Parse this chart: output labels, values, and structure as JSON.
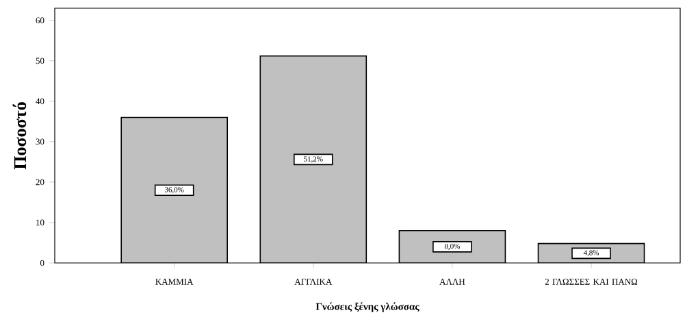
{
  "chart_data": {
    "type": "bar",
    "xlabel": "Γνώσεις ξένης γλώσσας",
    "ylabel": "Ποσοστό",
    "categories": [
      "ΚΑΜΜΙΑ",
      "ΑΓΓΛΙΚΑ",
      "ΑΛΛΗ",
      "2 ΓΛΩΣΣΕΣ ΚΑΙ ΠΑΝΩ"
    ],
    "values": [
      36.0,
      51.2,
      8.0,
      4.8
    ],
    "value_labels": [
      "36,0%",
      "51,2%",
      "8,0%",
      "4,8%"
    ],
    "color": "#c0c0c0",
    "ylim": [
      0,
      63
    ],
    "yticks": [
      0,
      10,
      20,
      30,
      40,
      50,
      60
    ],
    "grid": false
  }
}
